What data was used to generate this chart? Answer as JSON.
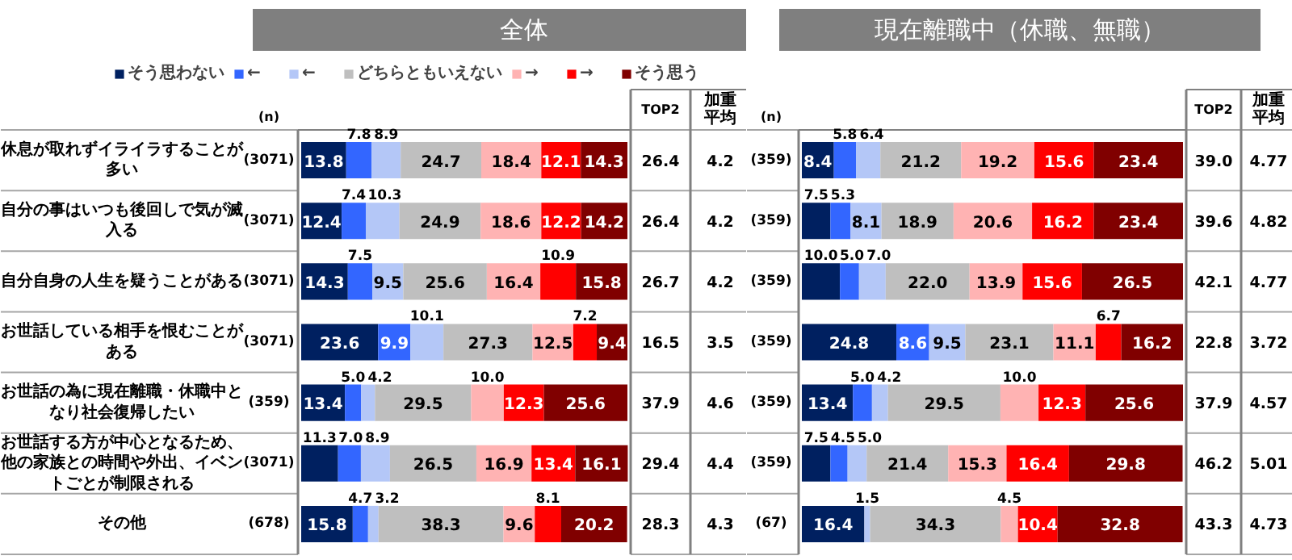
{
  "chart_data": [
    {
      "type": "bar",
      "orientation": "horizontal",
      "stacked": true,
      "title": "全体",
      "xlim": [
        0,
        100
      ],
      "legend": "top",
      "tick_labels": "y",
      "categories": [
        "休息が取れずイライラすることが多い",
        "自分の事はいつも後回しで気が滅入る",
        "自分自身の人生を疑うことがある",
        "お世話している相手を恨むことがある",
        "お世話の為に現在離職・休職中となり社会復帰したい",
        "お世話する方が中心となるため、他の家族との時間や外出、イベントごとが制限される",
        "その他"
      ],
      "series": [
        {
          "name": "そう思わない",
          "color": "#002060",
          "values": [
            13.8,
            12.4,
            14.3,
            23.6,
            13.4,
            11.3,
            15.8
          ],
          "value_labels": [
            "13.8",
            "12.4",
            "14.3",
            "23.6",
            "13.4",
            "11.3",
            "15.8"
          ]
        },
        {
          "name": "←",
          "color": "#3366ff",
          "values": [
            7.8,
            7.4,
            7.5,
            9.9,
            5.0,
            7.0,
            4.7
          ],
          "value_labels": [
            "7.8",
            "7.4",
            "7.5",
            "9.9",
            "5.0",
            "7.0",
            "4.7"
          ]
        },
        {
          "name": "←",
          "color": "#b4c7f7",
          "values": [
            8.9,
            10.3,
            9.5,
            10.1,
            4.2,
            8.9,
            3.2
          ],
          "value_labels": [
            "8.9",
            "10.3",
            "9.5",
            "10.1",
            "4.2",
            "8.9",
            "3.2"
          ]
        },
        {
          "name": "どちらともいえない",
          "color": "#bfbfbf",
          "values": [
            24.7,
            24.9,
            25.6,
            27.3,
            29.5,
            26.5,
            38.3
          ],
          "value_labels": [
            "24.7",
            "24.9",
            "25.6",
            "27.3",
            "29.5",
            "26.5",
            "38.3"
          ]
        },
        {
          "name": "→",
          "color": "#ffb3b3",
          "values": [
            18.4,
            18.6,
            16.4,
            12.5,
            10.0,
            16.9,
            9.6
          ],
          "value_labels": [
            "18.4",
            "18.6",
            "16.4",
            "12.5",
            "10.0",
            "16.9",
            "9.6"
          ]
        },
        {
          "name": "→",
          "color": "#ff0000",
          "values": [
            12.1,
            12.2,
            10.9,
            7.2,
            12.3,
            13.4,
            8.1
          ],
          "value_labels": [
            "12.1",
            "12.2",
            "10.9",
            "7.2",
            "12.3",
            "13.4",
            "8.1"
          ]
        },
        {
          "name": "そう思う",
          "color": "#800000",
          "values": [
            14.3,
            14.2,
            15.8,
            9.4,
            25.6,
            16.1,
            20.2
          ],
          "value_labels": [
            "14.3",
            "14.2",
            "15.8",
            "9.4",
            "25.6",
            "16.1",
            "20.2"
          ]
        }
      ],
      "annotations": [
        "(n)",
        "TOP2",
        "加重平均",
        "(3071)",
        "26.4",
        "4.2",
        "(3071)",
        "26.4",
        "4.2",
        "(3071)",
        "26.7",
        "4.2",
        "(3071)",
        "16.5",
        "3.5",
        "(359)",
        "37.9",
        "4.6",
        "(3071)",
        "29.4",
        "4.4",
        "(678)",
        "28.3",
        "4.3"
      ]
    },
    {
      "type": "bar",
      "orientation": "horizontal",
      "stacked": true,
      "title": "現在離職中（休職、無職）",
      "xlim": [
        0,
        100
      ],
      "tick_labels": false,
      "categories": [
        "休息が取れずイライラすることが多い",
        "自分の事はいつも後回しで気が滅入る",
        "自分自身の人生を疑うことがある",
        "お世話している相手を恨むことがある",
        "お世話の為に現在離職・休職中となり社会復帰したい",
        "お世話する方が中心となるため、他の家族との時間や外出、イベントごとが制限される",
        "その他"
      ],
      "series": [
        {
          "color": "#002060",
          "values": [
            8.4,
            7.5,
            10.0,
            24.8,
            13.4,
            7.5,
            16.4
          ],
          "value_labels": [
            "8.4",
            "7.5",
            "10.0",
            "24.8",
            "13.4",
            "7.5",
            "16.4"
          ]
        },
        {
          "color": "#3366ff",
          "values": [
            5.8,
            5.3,
            5.0,
            8.6,
            5.0,
            4.5,
            null
          ],
          "value_labels": [
            "5.8",
            "5.3",
            "5.0",
            "8.6",
            "5.0",
            "4.5",
            null
          ]
        },
        {
          "color": "#b4c7f7",
          "values": [
            6.4,
            8.1,
            7.0,
            9.5,
            4.2,
            5.0,
            1.5
          ],
          "value_labels": [
            "6.4",
            "8.1",
            "7.0",
            "9.5",
            "4.2",
            "5.0",
            "1.5"
          ]
        },
        {
          "color": "#bfbfbf",
          "values": [
            21.2,
            18.9,
            22.0,
            23.1,
            29.5,
            21.4,
            34.3
          ],
          "value_labels": [
            "21.2",
            "18.9",
            "22.0",
            "23.1",
            "29.5",
            "21.4",
            "34.3"
          ]
        },
        {
          "color": "#ffb3b3",
          "values": [
            19.2,
            20.6,
            13.9,
            11.1,
            10.0,
            15.3,
            4.5
          ],
          "value_labels": [
            "19.2",
            "20.6",
            "13.9",
            "11.1",
            "10.0",
            "15.3",
            "4.5"
          ]
        },
        {
          "color": "#ff0000",
          "values": [
            15.6,
            16.2,
            15.6,
            6.7,
            12.3,
            16.4,
            10.4
          ],
          "value_labels": [
            "15.6",
            "16.2",
            "15.6",
            "6.7",
            "12.3",
            "16.4",
            "10.4"
          ]
        },
        {
          "color": "#800000",
          "values": [
            23.4,
            23.4,
            26.5,
            16.2,
            25.6,
            29.8,
            32.8
          ],
          "value_labels": [
            "23.4",
            "23.4",
            "26.5",
            "16.2",
            "25.6",
            "29.8",
            "32.8"
          ]
        }
      ],
      "annotations": [
        "(n)",
        "TOP2",
        "加重平均",
        "(359)",
        "39.0",
        "4.77",
        "(359)",
        "39.6",
        "4.82",
        "(359)",
        "42.1",
        "4.77",
        "(359)",
        "22.8",
        "3.72",
        "(359)",
        "37.9",
        "4.57",
        "(359)",
        "46.2",
        "5.01",
        "(67)",
        "43.3",
        "4.73"
      ]
    }
  ]
}
